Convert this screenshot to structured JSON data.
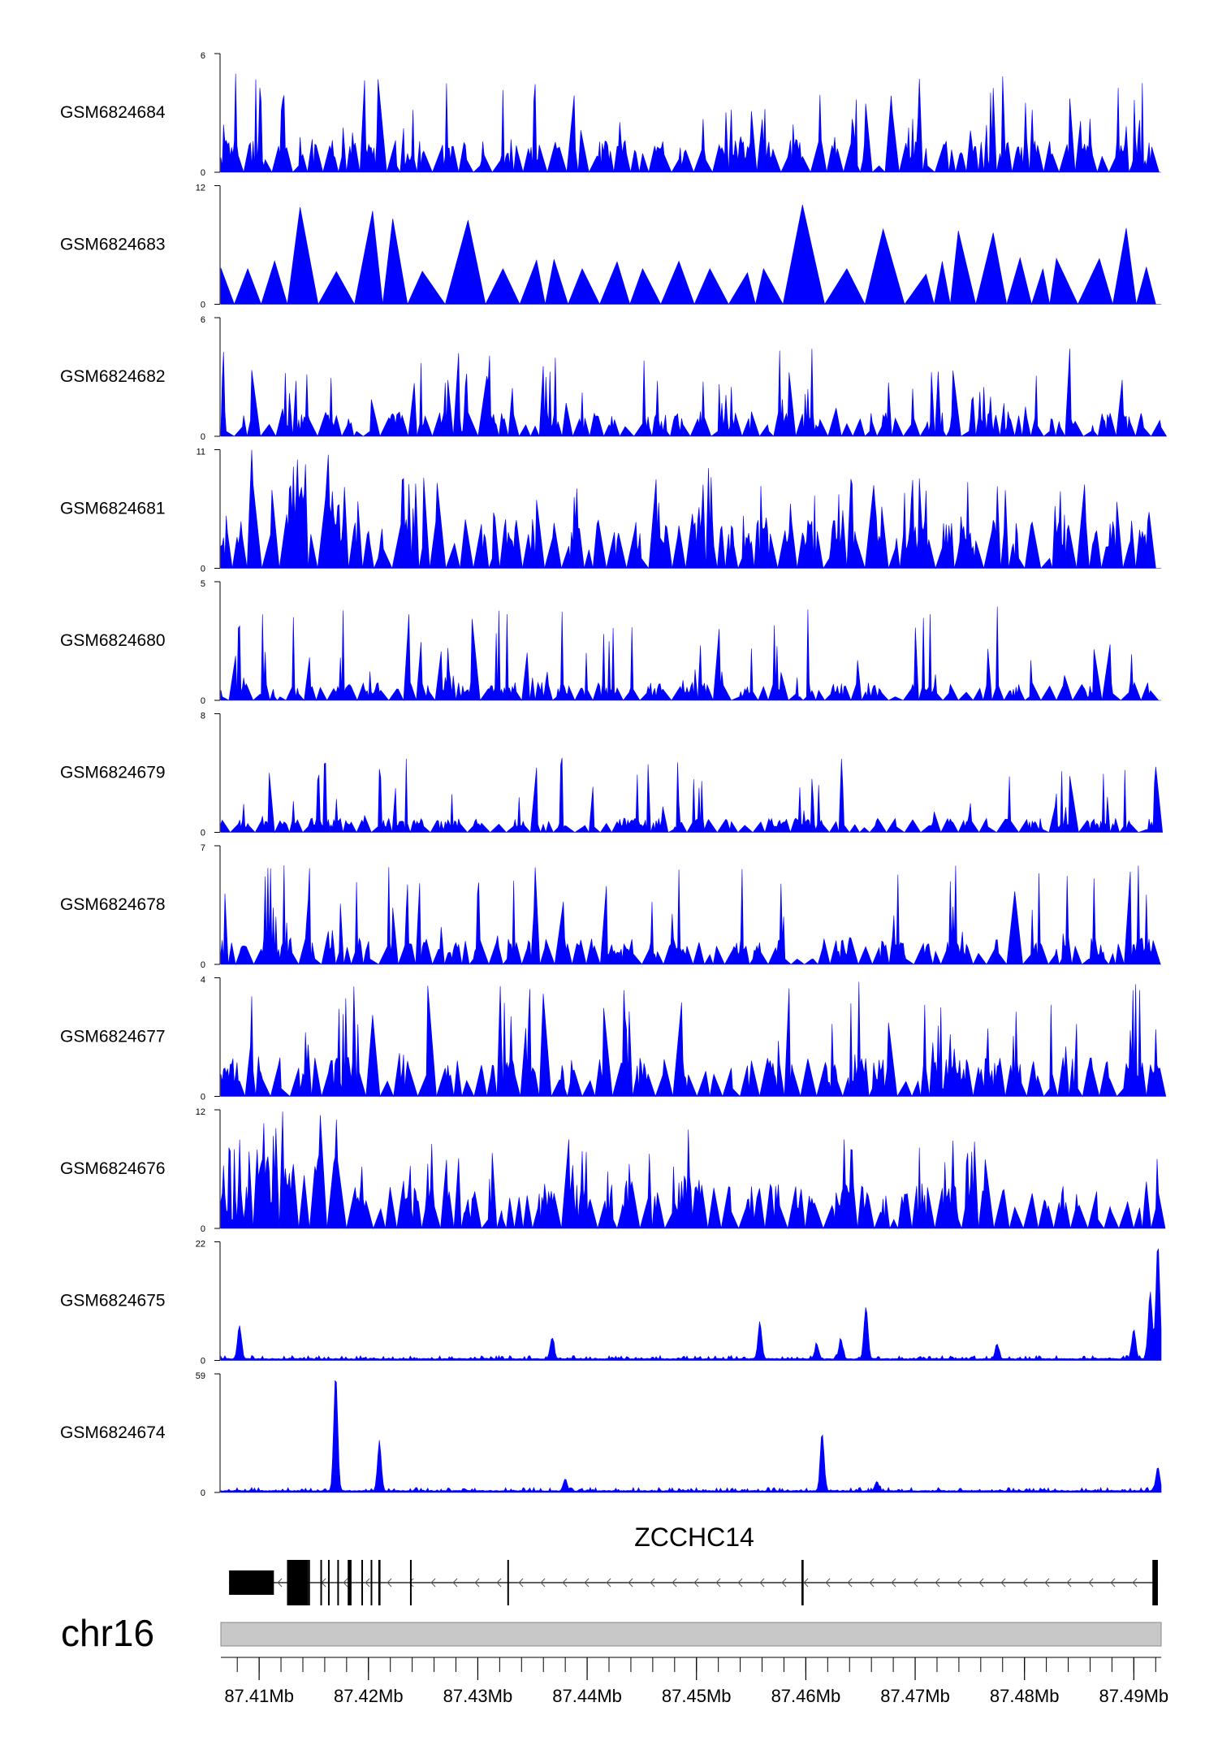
{
  "chart_data": {
    "type": "area",
    "track_color": "#0000ff",
    "gene_color": "#000000",
    "ideogram_color": "#c8c8c8",
    "x_unit": "Mb",
    "xlim": [
      87.4065,
      87.4925
    ],
    "tracks": [
      {
        "name": "GSM6824684",
        "ymax": "6",
        "ylim": [
          0,
          6
        ],
        "seed": 11,
        "pattern": "spiky",
        "base": 0.18,
        "spike": 0.65
      },
      {
        "name": "GSM6824683",
        "ymax": "12",
        "ylim": [
          0,
          12
        ],
        "seed": 23,
        "pattern": "sparse",
        "base": 0.0,
        "spike": 0.7
      },
      {
        "name": "GSM6824682",
        "ymax": "6",
        "ylim": [
          0,
          6
        ],
        "seed": 37,
        "pattern": "spiky",
        "base": 0.14,
        "spike": 0.6
      },
      {
        "name": "GSM6824681",
        "ymax": "11",
        "ylim": [
          0,
          11
        ],
        "seed": 41,
        "pattern": "dense",
        "base": 0.28,
        "spike": 0.5
      },
      {
        "name": "GSM6824680",
        "ymax": "5",
        "ylim": [
          0,
          5
        ],
        "seed": 53,
        "pattern": "spiky",
        "base": 0.1,
        "spike": 0.7
      },
      {
        "name": "GSM6824679",
        "ymax": "8",
        "ylim": [
          0,
          8
        ],
        "seed": 67,
        "pattern": "spiky",
        "base": 0.08,
        "spike": 0.55
      },
      {
        "name": "GSM6824678",
        "ymax": "7",
        "ylim": [
          0,
          7
        ],
        "seed": 71,
        "pattern": "spiky",
        "base": 0.15,
        "spike": 0.7
      },
      {
        "name": "GSM6824677",
        "ymax": "4",
        "ylim": [
          0,
          4
        ],
        "seed": 83,
        "pattern": "spiky",
        "base": 0.22,
        "spike": 0.75
      },
      {
        "name": "GSM6824676",
        "ymax": "12",
        "ylim": [
          0,
          12
        ],
        "seed": 97,
        "pattern": "dense",
        "base": 0.25,
        "spike": 0.5
      },
      {
        "name": "GSM6824675",
        "ymax": "22",
        "ylim": [
          0,
          22
        ],
        "seed": 101,
        "peaks": [
          [
            87.4082,
            0.28
          ],
          [
            87.4368,
            0.18
          ],
          [
            87.4558,
            0.3
          ],
          [
            87.461,
            0.12
          ],
          [
            87.4655,
            0.44
          ],
          [
            87.4632,
            0.16
          ],
          [
            87.4775,
            0.12
          ],
          [
            87.4915,
            0.55
          ],
          [
            87.4922,
            0.97
          ],
          [
            87.49,
            0.25
          ]
        ]
      },
      {
        "name": "GSM6824674",
        "ymax": "59",
        "ylim": [
          0,
          59
        ],
        "seed": 113,
        "peaks": [
          [
            87.417,
            0.98
          ],
          [
            87.421,
            0.4
          ],
          [
            87.438,
            0.1
          ],
          [
            87.4615,
            0.48
          ],
          [
            87.4665,
            0.08
          ],
          [
            87.4922,
            0.2
          ]
        ]
      }
    ],
    "zero_label": "0",
    "gene": {
      "name": "ZCCHC14",
      "strand": "-",
      "start": 87.40725,
      "end": 87.4922,
      "exons": [
        [
          87.40725,
          87.41135
        ],
        [
          87.41255,
          87.4145
        ],
        [
          87.4145,
          87.41455
        ],
        [
          87.4156,
          87.41565
        ],
        [
          87.4163,
          87.41635
        ],
        [
          87.41715,
          87.4172
        ],
        [
          87.4181,
          87.41845
        ],
        [
          87.41935,
          87.4194
        ],
        [
          87.4202,
          87.42025
        ],
        [
          87.4209,
          87.4211
        ],
        [
          87.4238,
          87.42385
        ],
        [
          87.4327,
          87.4328
        ],
        [
          87.4596,
          87.4598
        ],
        [
          87.4917,
          87.4922
        ]
      ]
    },
    "chromosome": "chr16",
    "axis": {
      "ticks": [
        87.41,
        87.42,
        87.43,
        87.44,
        87.45,
        87.46,
        87.47,
        87.48,
        87.49
      ],
      "tick_labels": [
        "87.41Mb",
        "87.42Mb",
        "87.43Mb",
        "87.44Mb",
        "87.45Mb",
        "87.46Mb",
        "87.47Mb",
        "87.48Mb",
        "87.49Mb"
      ],
      "minor_step": 0.002
    }
  }
}
